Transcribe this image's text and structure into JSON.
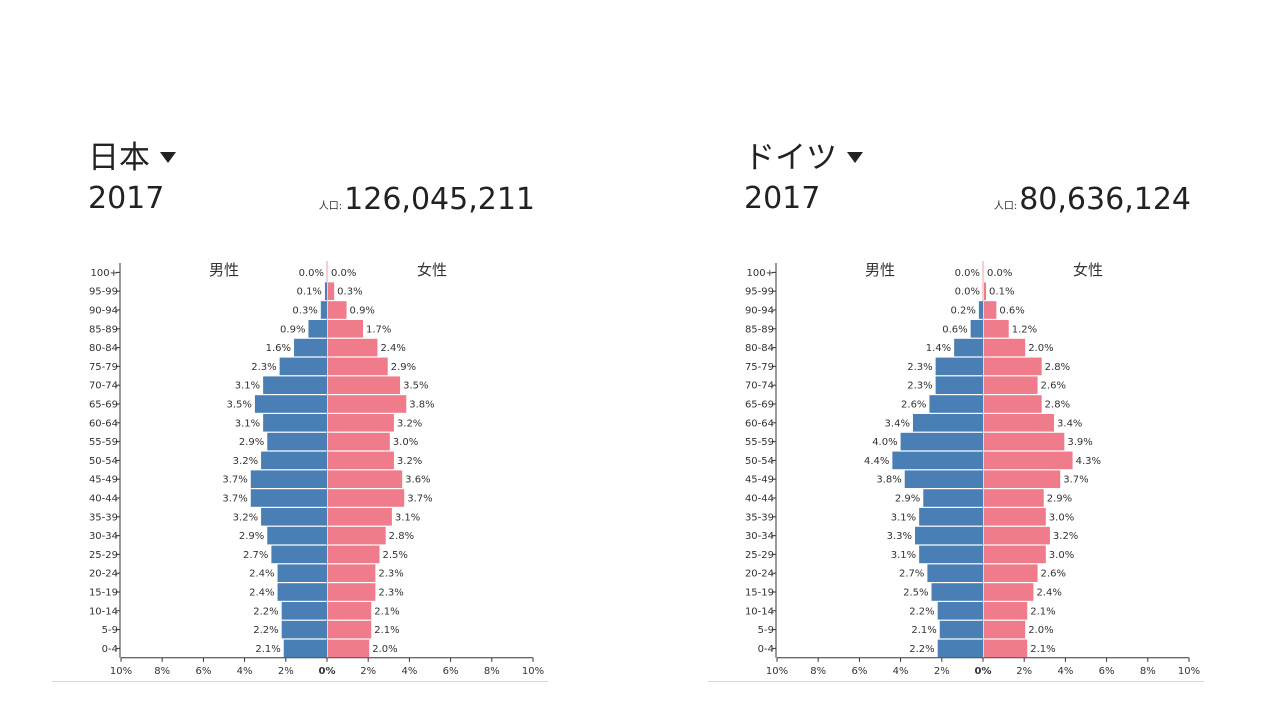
{
  "chart_data": [
    {
      "type": "bar",
      "orientation": "horizontal-butterfly",
      "country": "日本",
      "year": "2017",
      "population_label": "人口:",
      "population": "126,045,211",
      "male_label": "男性",
      "female_label": "女性",
      "categories": [
        "100+",
        "95-99",
        "90-94",
        "85-89",
        "80-84",
        "75-79",
        "70-74",
        "65-69",
        "60-64",
        "55-59",
        "50-54",
        "45-49",
        "40-44",
        "35-39",
        "30-34",
        "25-29",
        "20-24",
        "15-19",
        "10-14",
        "5-9",
        "0-4"
      ],
      "series": [
        {
          "name": "男性",
          "color": "#4a7fb5",
          "values": [
            0.0,
            0.1,
            0.3,
            0.9,
            1.6,
            2.3,
            3.1,
            3.5,
            3.1,
            2.9,
            3.2,
            3.7,
            3.7,
            3.2,
            2.9,
            2.7,
            2.4,
            2.4,
            2.2,
            2.2,
            2.1
          ]
        },
        {
          "name": "女性",
          "color": "#ef7b8b",
          "values": [
            0.0,
            0.3,
            0.9,
            1.7,
            2.4,
            2.9,
            3.5,
            3.8,
            3.2,
            3.0,
            3.2,
            3.6,
            3.7,
            3.1,
            2.8,
            2.5,
            2.3,
            2.3,
            2.1,
            2.1,
            2.0
          ]
        }
      ],
      "xticks": [
        "10%",
        "8%",
        "6%",
        "4%",
        "2%",
        "0%",
        "2%",
        "4%",
        "6%",
        "8%",
        "10%"
      ],
      "xlim": [
        -10,
        10
      ]
    },
    {
      "type": "bar",
      "orientation": "horizontal-butterfly",
      "country": "ドイツ",
      "year": "2017",
      "population_label": "人口:",
      "population": "80,636,124",
      "male_label": "男性",
      "female_label": "女性",
      "categories": [
        "100+",
        "95-99",
        "90-94",
        "85-89",
        "80-84",
        "75-79",
        "70-74",
        "65-69",
        "60-64",
        "55-59",
        "50-54",
        "45-49",
        "40-44",
        "35-39",
        "30-34",
        "25-29",
        "20-24",
        "15-19",
        "10-14",
        "5-9",
        "0-4"
      ],
      "series": [
        {
          "name": "男性",
          "color": "#4a7fb5",
          "values": [
            0.0,
            0.0,
            0.2,
            0.6,
            1.4,
            2.3,
            2.3,
            2.6,
            3.4,
            4.0,
            4.4,
            3.8,
            2.9,
            3.1,
            3.3,
            3.1,
            2.7,
            2.5,
            2.2,
            2.1,
            2.2
          ]
        },
        {
          "name": "女性",
          "color": "#ef7b8b",
          "values": [
            0.0,
            0.1,
            0.6,
            1.2,
            2.0,
            2.8,
            2.6,
            2.8,
            3.4,
            3.9,
            4.3,
            3.7,
            2.9,
            3.0,
            3.2,
            3.0,
            2.6,
            2.4,
            2.1,
            2.0,
            2.1
          ]
        }
      ],
      "xticks": [
        "10%",
        "8%",
        "6%",
        "4%",
        "2%",
        "0%",
        "2%",
        "4%",
        "6%",
        "8%",
        "10%"
      ],
      "xlim": [
        -10,
        10
      ]
    }
  ]
}
